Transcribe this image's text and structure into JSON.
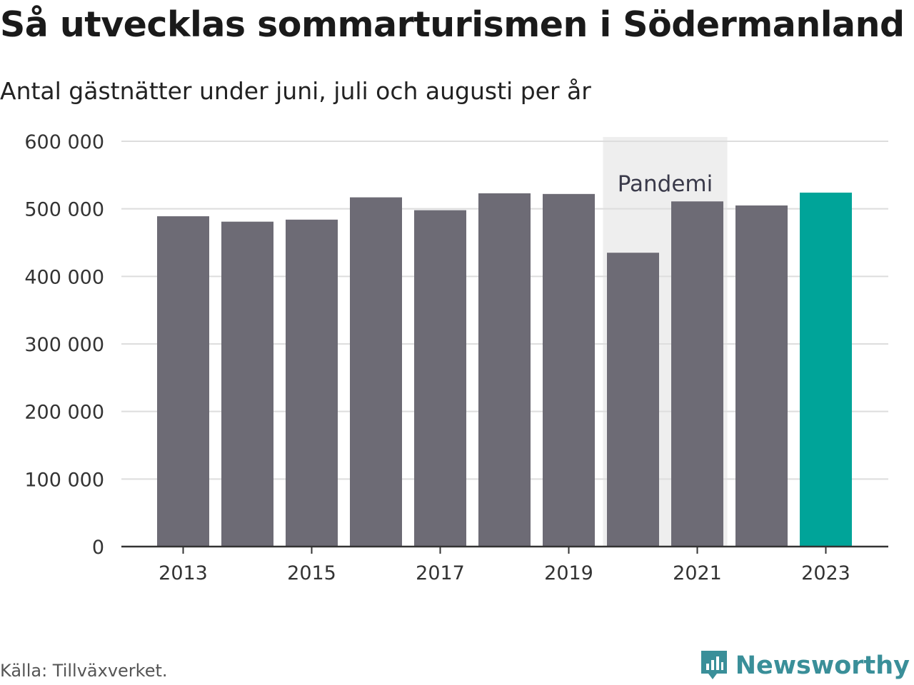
{
  "title": "Så utvecklas sommarturismen i Södermanland",
  "subtitle": "Antal gästnätter under juni, juli och augusti per år",
  "source": "Källa: Tillväxverket.",
  "brand": {
    "name": "Newsworthy",
    "icon": "newsworthy-logo-icon",
    "color": "#3a8f99"
  },
  "colors": {
    "bar": "#6d6b75",
    "highlight": "#00a499",
    "band": "#eeeeee",
    "grid": "#dddddd",
    "axis": "#333333"
  },
  "chart_data": {
    "type": "bar",
    "categories": [
      "2013",
      "2014",
      "2015",
      "2016",
      "2017",
      "2018",
      "2019",
      "2020",
      "2021",
      "2022",
      "2023"
    ],
    "values": [
      489000,
      481000,
      484000,
      517000,
      498000,
      523000,
      522000,
      435000,
      511000,
      505000,
      524000
    ],
    "highlight_category": "2023",
    "ylim": [
      0,
      600000
    ],
    "yticks": [
      0,
      100000,
      200000,
      300000,
      400000,
      500000,
      600000
    ],
    "ytick_labels": [
      "0",
      "100 000",
      "200 000",
      "300 000",
      "400 000",
      "500 000",
      "600 000"
    ],
    "xtick_labels": [
      "2013",
      "2015",
      "2017",
      "2019",
      "2021",
      "2023"
    ],
    "annotation": {
      "label": "Pandemi",
      "from": "2020",
      "to": "2021"
    },
    "grid": true,
    "xlabel": "",
    "ylabel": ""
  }
}
